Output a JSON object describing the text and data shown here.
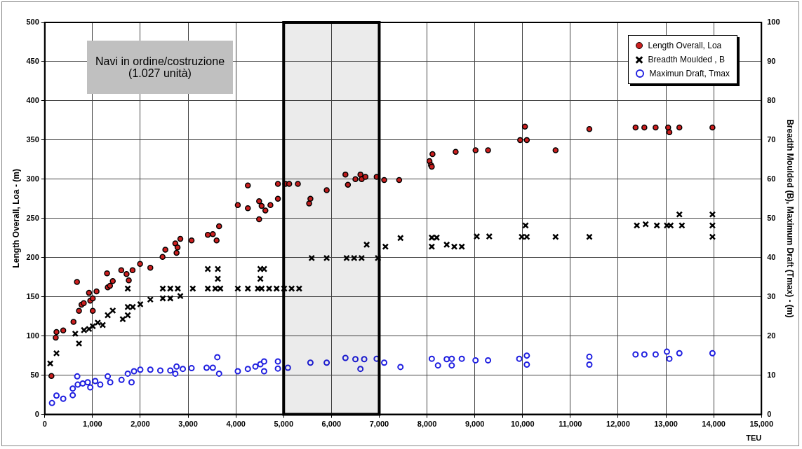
{
  "chart_data": {
    "type": "scatter",
    "xlabel": "TEU",
    "ylabel": "Length Overall, Loa - (m)",
    "y2label": "Breadth Moulded (B), Maximum Draft (Tmax) - (m)",
    "annotations": [
      "Navi in ordine/costruzione (1.027 unità)"
    ],
    "xlim": [
      0,
      15000
    ],
    "xticks": [
      0,
      {
        "value": 1000,
        "label": "1,000"
      },
      {
        "value": 2000,
        "label": "2,000"
      },
      {
        "value": 3000,
        "label": "3,000"
      },
      {
        "value": 4000,
        "label": "4,000"
      },
      {
        "value": 5000,
        "label": "5,000"
      },
      {
        "value": 6000,
        "label": "6,000"
      },
      {
        "value": 7000,
        "label": "7,000"
      },
      {
        "value": 8000,
        "label": "8,000"
      },
      {
        "value": 9000,
        "label": "9,000"
      },
      {
        "value": 10000,
        "label": "10,000"
      },
      {
        "value": 11000,
        "label": "11,000"
      },
      {
        "value": 12000,
        "label": "12,000"
      },
      {
        "value": 13000,
        "label": "13,000"
      },
      {
        "value": 14000,
        "label": "14,000"
      },
      {
        "value": 15000,
        "label": "15,000"
      }
    ],
    "ylim": [
      0,
      500
    ],
    "yticks": [
      0,
      50,
      100,
      150,
      200,
      250,
      300,
      350,
      400,
      450,
      500
    ],
    "y2lim": [
      0,
      100
    ],
    "y2ticks": [
      0,
      10,
      20,
      30,
      40,
      50,
      60,
      70,
      80,
      90,
      100
    ],
    "grid": true,
    "legend": "top right",
    "bands": [
      {
        "axis": "x",
        "from": 5000,
        "to": 7000,
        "color": "#000000"
      }
    ],
    "series": [
      {
        "name": "Length Overall, Loa",
        "color": "#cc1f1f",
        "marker": "circle",
        "x": [
          140,
          230,
          246,
          387,
          602,
          675,
          717,
          770,
          817,
          927,
          953,
          1005,
          1084,
          1005,
          1304,
          1319,
          1424,
          1366,
          1602,
          1712,
          1759,
          1838,
          1995,
          2210,
          2466,
          2524,
          2733,
          2780,
          2838,
          2759,
          3073,
          3413,
          3518,
          3597,
          3649,
          4041,
          4251,
          4251,
          4487,
          4487,
          4539,
          4618,
          4723,
          4880,
          4880,
          5037,
          5116,
          5298,
          5560,
          5534,
          5901,
          6293,
          6345,
          6502,
          6607,
          6633,
          6712,
          6947,
          7104,
          7418,
          8052,
          8084,
          8115,
          8100,
          8600,
          9016,
          9278,
          9950,
          10050,
          10089,
          10691,
          11398,
          12365,
          12549,
          12785,
          13047,
          13073,
          13282,
          13974
        ],
        "values": [
          49,
          98,
          105,
          107,
          118,
          169,
          132,
          140,
          142,
          155,
          145,
          148,
          157,
          132,
          180,
          162,
          170,
          164,
          184,
          179,
          171,
          184,
          192,
          187,
          201,
          210,
          218,
          213,
          224,
          206,
          222,
          229,
          230,
          222,
          240,
          267,
          263,
          292,
          272,
          249,
          266,
          260,
          267,
          275,
          294,
          294,
          294,
          294,
          275,
          269,
          286,
          306,
          293,
          300,
          306,
          300,
          303,
          303,
          299,
          299,
          323,
          318,
          332,
          316,
          335,
          337,
          337,
          350,
          367,
          350,
          337,
          364,
          366,
          366,
          366,
          366,
          360,
          366,
          366
        ]
      },
      {
        "name": "Breadth Moulded , B",
        "color": "#000000",
        "marker": "cross",
        "axis": "y2",
        "x": [
          115,
          246,
          717,
          639,
          822,
          927,
          1005,
          1110,
          1214,
          1319,
          1424,
          1633,
          1738,
          1738,
          1738,
          1843,
          2000,
          2210,
          2471,
          2471,
          2628,
          2785,
          2628,
          2838,
          3099,
          3413,
          3570,
          3675,
          3413,
          3623,
          3623,
          4041,
          4251,
          4461,
          4513,
          4513,
          4539,
          4696,
          4853,
          5010,
          5167,
          5324,
          4591,
          5587,
          5901,
          6318,
          6475,
          6632,
          6973,
          6738,
          7130,
          7445,
          8100,
          8203,
          8100,
          8413,
          8571,
          8728,
          9042,
          9303,
          9984,
          10089,
          10063,
          10691,
          11398,
          12392,
          12576,
          12811,
          13021,
          13099,
          13335,
          13282,
          13974,
          13974,
          13974
        ],
        "values": [
          13,
          15.6,
          18.1,
          20.6,
          21.5,
          21.8,
          22.5,
          23.4,
          22.8,
          25.3,
          26.5,
          24.3,
          25.3,
          27.4,
          32.1,
          27.4,
          28.1,
          29.3,
          32.1,
          29.6,
          32.1,
          32.1,
          29.6,
          30.2,
          32.1,
          32.1,
          32.1,
          32.1,
          37.1,
          37.1,
          34.6,
          32.1,
          32.1,
          32.1,
          37.1,
          34.6,
          32.1,
          32.1,
          32.1,
          32.1,
          32.1,
          32.1,
          37.1,
          39.9,
          39.9,
          39.9,
          39.9,
          39.9,
          39.9,
          43.3,
          42.8,
          45,
          45.1,
          45.1,
          42.8,
          43.3,
          42.8,
          42.8,
          45.4,
          45.4,
          45.3,
          45.3,
          48.2,
          45.3,
          45.3,
          48.2,
          48.5,
          48.2,
          48.2,
          48.2,
          48.2,
          51,
          51,
          48.2,
          45.3
        ]
      },
      {
        "name": "Maximun Draft, Tmax",
        "color": "#1f1fe0",
        "marker": "circle",
        "axis": "y2",
        "x": [
          152,
          246,
          387,
          586,
          586,
          680,
          691,
          796,
          900,
          953,
          1057,
          1162,
          1319,
          1371,
          1607,
          1738,
          1817,
          1869,
          2000,
          2210,
          2419,
          2628,
          2759,
          2733,
          2890,
          3073,
          3388,
          3518,
          3612,
          3649,
          4041,
          4251,
          4409,
          4513,
          4591,
          4591,
          4880,
          4880,
          5089,
          5560,
          5901,
          6293,
          6502,
          6607,
          6686,
          6947,
          7104,
          7445,
          8100,
          8230,
          8413,
          8518,
          8518,
          8728,
          9016,
          9278,
          9931,
          10089,
          10089,
          11398,
          11398,
          12365,
          12549,
          12785,
          13021,
          13073,
          13282,
          13974
        ],
        "values": [
          2.9,
          4.8,
          4,
          4.9,
          6.6,
          9.7,
          7.6,
          7.9,
          8.2,
          6.9,
          8.5,
          7.6,
          9.7,
          8.2,
          8.8,
          10.4,
          8.2,
          11,
          11.4,
          11.4,
          11.2,
          11.2,
          12.2,
          10.4,
          11.6,
          11.8,
          11.9,
          11.9,
          14.6,
          10.4,
          11,
          11.6,
          12.2,
          12.8,
          13.5,
          11,
          13.5,
          11.7,
          11.9,
          13.2,
          13.2,
          14.4,
          14.1,
          11.6,
          14.1,
          14.2,
          13.2,
          12.1,
          14.2,
          12.5,
          14.1,
          14.2,
          12.5,
          14.2,
          13.8,
          13.8,
          14.2,
          15,
          12.7,
          14.7,
          12.7,
          15.3,
          15.3,
          15.3,
          16,
          14.2,
          15.6,
          15.6
        ]
      }
    ]
  }
}
